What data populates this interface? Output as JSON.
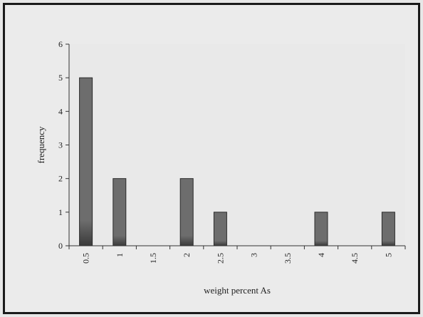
{
  "chart_data": {
    "type": "bar",
    "title": "",
    "xlabel": "weight percent As",
    "ylabel": "frequency",
    "categories": [
      "0.5",
      "1",
      "1.5",
      "2",
      "2.5",
      "3",
      "3.5",
      "4",
      "4.5",
      "5"
    ],
    "values": [
      5,
      2,
      0,
      2,
      1,
      0,
      0,
      1,
      0,
      1
    ],
    "ylim": [
      0,
      6
    ],
    "yticks": [
      "0",
      "1",
      "2",
      "3",
      "4",
      "5",
      "6"
    ],
    "grid": false,
    "legend": "none",
    "colors": {
      "bar_fill": "#6d6d6d",
      "bar_stroke": "#2a2a2a",
      "plot_background": "#e9e9e9",
      "axis": "#333333"
    }
  }
}
